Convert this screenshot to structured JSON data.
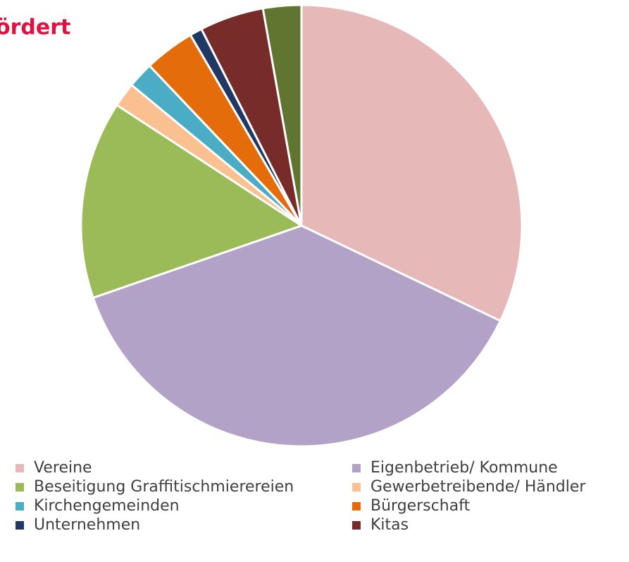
{
  "chart_data": {
    "type": "pie",
    "title": "ördert",
    "categories": [
      "Vereine",
      "Eigenbetrieb/ Kommune",
      "Beseitigung Graffitischmierereien",
      "Gewerbetreibende/ Händler",
      "Kirchengemeinden",
      "Bürgerschaft",
      "Unternehmen",
      "Kitas",
      null
    ],
    "values": [
      32.1,
      37.6,
      14.5,
      1.8,
      1.9,
      3.7,
      0.9,
      4.7,
      2.8
    ],
    "colors": [
      "#e6b8b7",
      "#b3a2c7",
      "#9bbb59",
      "#fac090",
      "#4bacc6",
      "#e46c0a",
      "#1f3864",
      "#772c2a",
      "#5f7530"
    ]
  }
}
